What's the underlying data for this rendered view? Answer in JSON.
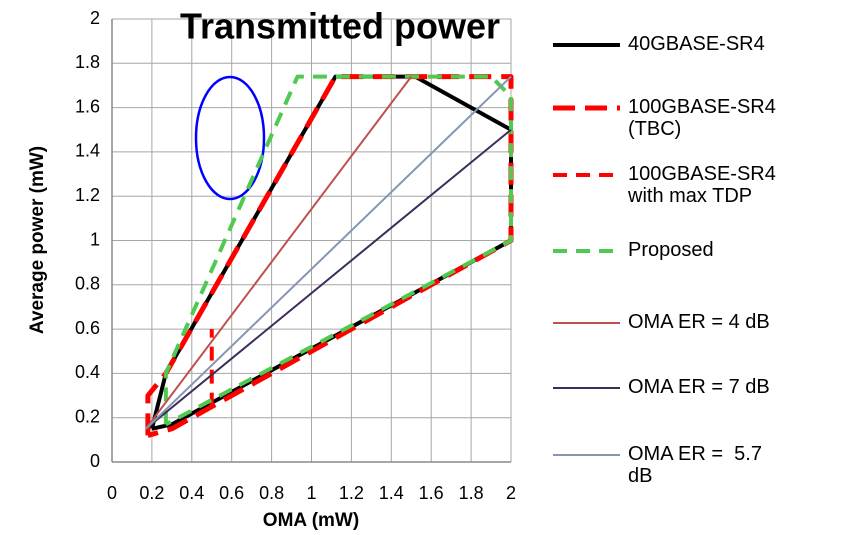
{
  "chart_data": {
    "type": "line",
    "title": "Transmitted power",
    "xlabel": "OMA (mW)",
    "ylabel": "Average power (mW)",
    "xlim": [
      0,
      2
    ],
    "xticks": [
      0,
      0.2,
      0.4,
      0.6,
      0.8,
      1,
      1.2,
      1.4,
      1.6,
      1.8,
      2
    ],
    "ylim": [
      0,
      2
    ],
    "yticks": [
      0,
      0.2,
      0.4,
      0.6,
      0.8,
      1,
      1.2,
      1.4,
      1.6,
      1.8,
      2
    ],
    "grid": true,
    "legend": "right",
    "series": [
      {
        "name": "40GBASE-SR4",
        "color": "#000000",
        "dash": "solid",
        "linewidth": 4,
        "x": [
          0.2,
          0.27,
          1.12,
          1.52,
          2,
          2,
          0.3,
          0.2
        ],
        "values": [
          0.15,
          0.4,
          1.74,
          1.74,
          1.5,
          1,
          0.17,
          0.15
        ]
      },
      {
        "name": "100GBASE-SR4 (TBC)",
        "color": "#ff0000",
        "dash": "long",
        "linewidth": 5,
        "x": [
          0.18,
          0.18,
          0.27,
          1.12,
          2,
          2,
          0.3,
          0.18
        ],
        "values": [
          0.12,
          0.3,
          0.4,
          1.74,
          1.74,
          1,
          0.15,
          0.12
        ]
      },
      {
        "name": "100GBASE-SR4 with max TDP",
        "color": "#ff0000",
        "dash": "short",
        "linewidth": 4,
        "x": [
          0.5,
          0.5
        ],
        "values": [
          0.25,
          0.6
        ]
      },
      {
        "name": "Proposed",
        "color": "#4fc94f",
        "dash": "short",
        "linewidth": 4,
        "x": [
          0.27,
          0.27,
          0.93,
          1.9,
          2,
          2,
          0.27
        ],
        "values": [
          0.17,
          0.4,
          1.74,
          1.74,
          1.65,
          1,
          0.17
        ]
      },
      {
        "name": "OMA ER = 4 dB",
        "color": "#c0504d",
        "dash": "solid",
        "linewidth": 2,
        "x": [
          0.17,
          1.5
        ],
        "values": [
          0.15,
          1.74
        ]
      },
      {
        "name": "OMA ER = 7 dB",
        "color": "#3b2c5c",
        "dash": "solid",
        "linewidth": 2,
        "x": [
          0.17,
          2
        ],
        "values": [
          0.15,
          1.5
        ]
      },
      {
        "name": "OMA ER =  5.7 dB",
        "color": "#8496b0",
        "dash": "solid",
        "linewidth": 2,
        "x": [
          0.17,
          2
        ],
        "values": [
          0.15,
          1.74
        ]
      }
    ]
  }
}
